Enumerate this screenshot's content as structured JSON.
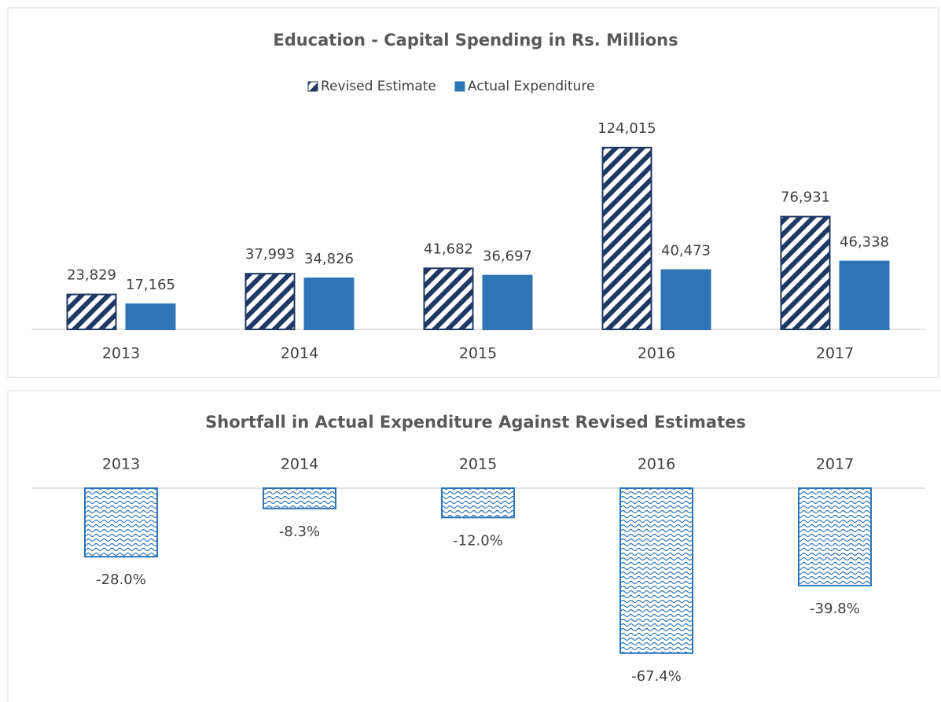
{
  "chart_data": [
    {
      "type": "bar",
      "title": "Education - Capital Spending in Rs. Millions",
      "categories": [
        "2013",
        "2014",
        "2015",
        "2016",
        "2017"
      ],
      "series": [
        {
          "name": "Revised Estimate",
          "color": "#1f3864",
          "pattern": "hatch",
          "values": [
            23829,
            37993,
            41682,
            124015,
            76931
          ],
          "value_labels": [
            "23,829",
            "37,993",
            "41,682",
            "124,015",
            "76,931"
          ]
        },
        {
          "name": "Actual Expenditure",
          "color": "#2e75b6",
          "values": [
            17165,
            34826,
            36697,
            40473,
            46338
          ],
          "value_labels": [
            "17,165",
            "34,826",
            "36,697",
            "40,473",
            "46,338"
          ]
        }
      ],
      "ylim": [
        0,
        140000
      ],
      "legend": "top"
    },
    {
      "type": "bar",
      "title": "Shortfall in Actual Expenditure Against Revised Estimates",
      "categories": [
        "2013",
        "2014",
        "2015",
        "2016",
        "2017"
      ],
      "values": [
        -28.0,
        -8.3,
        -12.0,
        -67.4,
        -39.8
      ],
      "value_labels": [
        "-28.0%",
        "-8.3%",
        "-12.0%",
        "-67.4%",
        "-39.8%"
      ],
      "color": "#2e75b6",
      "pattern": "wave",
      "ylim": [
        -80,
        0
      ]
    }
  ]
}
